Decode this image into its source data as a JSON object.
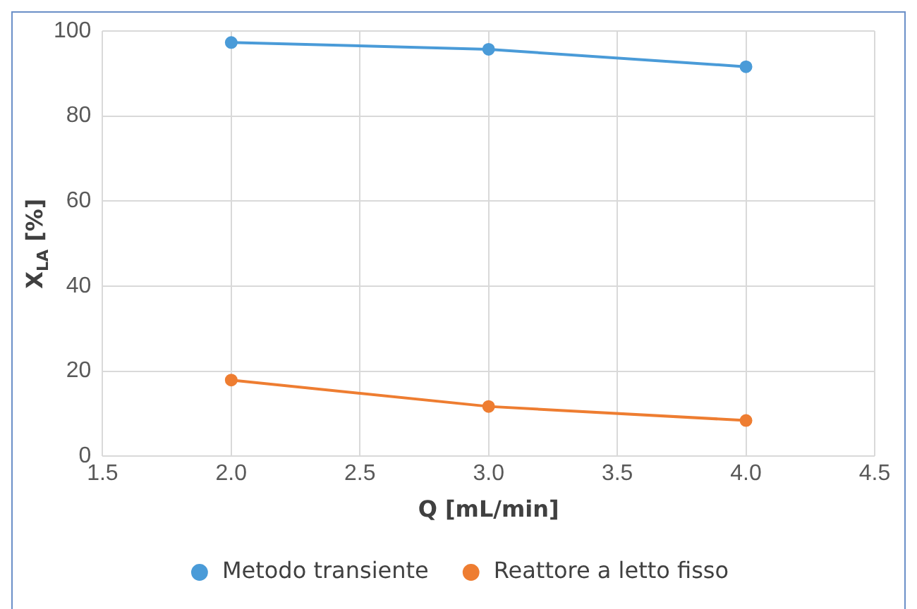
{
  "chart_data": {
    "type": "line",
    "xlabel": "Q [mL/min]",
    "ylabel": "X$_{LA}$ [%]",
    "x": [
      2.0,
      3.0,
      4.0
    ],
    "series": [
      {
        "name": "Metodo transiente",
        "color": "#4a9bd8",
        "values": [
          97.3,
          95.7,
          91.6
        ]
      },
      {
        "name": "Reattore a letto fisso",
        "color": "#ee7d31",
        "values": [
          17.9,
          11.7,
          8.4
        ]
      }
    ],
    "xlim": [
      1.5,
      4.5
    ],
    "xticks": [
      {
        "value": 1.5,
        "label": "1.5"
      },
      {
        "value": 2.0,
        "label": "2.0"
      },
      {
        "value": 2.5,
        "label": "2.5"
      },
      {
        "value": 3.0,
        "label": "3.0"
      },
      {
        "value": 3.5,
        "label": "3.5"
      },
      {
        "value": 4.0,
        "label": "4.0"
      },
      {
        "value": 4.5,
        "label": "4.5"
      }
    ],
    "ylim": [
      0,
      100
    ],
    "yticks": [
      0,
      20,
      40,
      60,
      80,
      100
    ],
    "grid": true,
    "legend": "bottom",
    "marker": "circle",
    "line_style": "solid"
  }
}
